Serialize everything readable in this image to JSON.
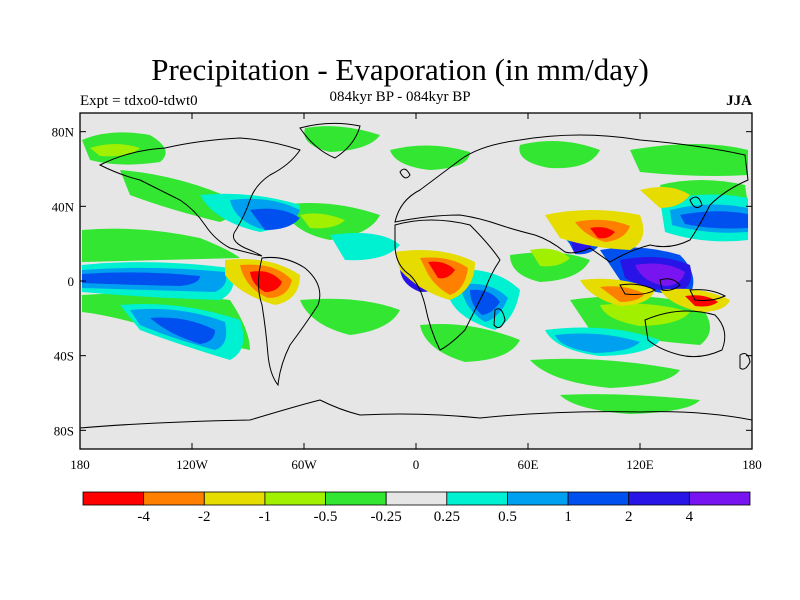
{
  "title": "Precipitation - Evaporation (in mm/day)",
  "subtitle": "084kyr BP - 084kyr BP",
  "left_label": "Expt = tdxo0-tdwt0",
  "right_label": "JJA",
  "map": {
    "projection": "cylindrical-equidistant",
    "land_outline": "black-coastlines",
    "background_color": "#e6e6e6",
    "x_ticks": [
      {
        "lon": -180,
        "label": "180"
      },
      {
        "lon": -120,
        "label": "120W"
      },
      {
        "lon": -60,
        "label": "60W"
      },
      {
        "lon": 0,
        "label": "0"
      },
      {
        "lon": 60,
        "label": "60E"
      },
      {
        "lon": 120,
        "label": "120E"
      },
      {
        "lon": 180,
        "label": "180"
      }
    ],
    "y_ticks": [
      {
        "lat": 80,
        "label": "80N"
      },
      {
        "lat": 40,
        "label": "40N"
      },
      {
        "lat": 0,
        "label": "0"
      },
      {
        "lat": -40,
        "label": "40S"
      },
      {
        "lat": -80,
        "label": "80S"
      }
    ],
    "lat_range": [
      -90,
      90
    ],
    "lon_range": [
      -180,
      180
    ]
  },
  "colorbar": {
    "colors": [
      "#ff0000",
      "#ff8000",
      "#e6dc00",
      "#a0f000",
      "#32e632",
      "#e6e6e6",
      "#00f0d2",
      "#00a0f0",
      "#0050f0",
      "#2814e6",
      "#7814f0"
    ],
    "labels": [
      "-4",
      "-2",
      "-1",
      "-0.5",
      "-0.25",
      "0.25",
      "0.5",
      "1",
      "2",
      "4"
    ]
  }
}
